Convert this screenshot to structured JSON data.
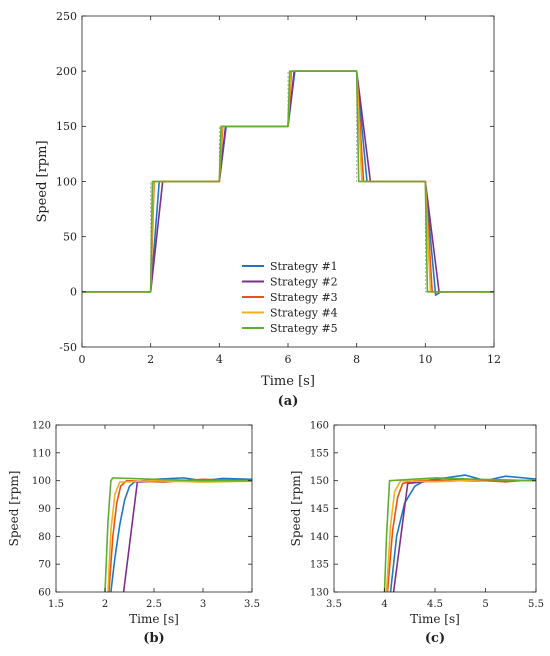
{
  "series_names": [
    "Strategy #1",
    "Strategy #2",
    "Strategy #3",
    "Strategy #4",
    "Strategy #5"
  ],
  "series_colors": [
    "#1f77c4",
    "#7e2f8e",
    "#e5531a",
    "#f2b01e",
    "#5fae2e"
  ],
  "captions": {
    "a": "(a)",
    "b": "(b)",
    "c": "(c)"
  },
  "chart_data": [
    {
      "id": "a",
      "type": "line",
      "xlabel": "Time [s]",
      "ylabel": "Speed [rpm]",
      "xlim": [
        0,
        12
      ],
      "ylim": [
        -50,
        250
      ],
      "xticks": [
        0,
        2,
        4,
        6,
        8,
        10,
        12
      ],
      "yticks": [
        -50,
        0,
        50,
        100,
        150,
        200,
        250
      ],
      "grid": false,
      "legend": "center",
      "reference": [
        [
          0,
          0
        ],
        [
          2,
          0
        ],
        [
          2,
          100
        ],
        [
          4,
          100
        ],
        [
          4,
          150
        ],
        [
          6,
          150
        ],
        [
          6,
          200
        ],
        [
          8,
          200
        ],
        [
          8,
          100
        ],
        [
          10,
          100
        ],
        [
          10,
          0
        ],
        [
          12,
          0
        ]
      ],
      "series": [
        {
          "name": "Strategy #1",
          "values": [
            [
              0,
              0
            ],
            [
              2,
              0
            ],
            [
              2.25,
              100
            ],
            [
              4,
              100
            ],
            [
              4.2,
              150
            ],
            [
              6,
              150
            ],
            [
              6.2,
              200
            ],
            [
              8,
              200
            ],
            [
              8.3,
              100
            ],
            [
              10,
              100
            ],
            [
              10.3,
              -3
            ],
            [
              10.45,
              0
            ],
            [
              12,
              0
            ]
          ]
        },
        {
          "name": "Strategy #2",
          "values": [
            [
              0,
              0
            ],
            [
              2,
              0
            ],
            [
              2.35,
              100
            ],
            [
              4,
              100
            ],
            [
              4.18,
              150
            ],
            [
              6,
              150
            ],
            [
              6.18,
              200
            ],
            [
              8,
              200
            ],
            [
              8.4,
              100
            ],
            [
              10,
              100
            ],
            [
              10.4,
              0
            ],
            [
              12,
              0
            ]
          ]
        },
        {
          "name": "Strategy #3",
          "values": [
            [
              0,
              0
            ],
            [
              2,
              0
            ],
            [
              2.1,
              100
            ],
            [
              4,
              100
            ],
            [
              4.1,
              150
            ],
            [
              6,
              150
            ],
            [
              6.1,
              200
            ],
            [
              8,
              200
            ],
            [
              8.2,
              100
            ],
            [
              10,
              100
            ],
            [
              10.2,
              0
            ],
            [
              12,
              0
            ]
          ]
        },
        {
          "name": "Strategy #4",
          "values": [
            [
              0,
              0
            ],
            [
              2,
              0
            ],
            [
              2.08,
              100
            ],
            [
              4,
              100
            ],
            [
              4.08,
              150
            ],
            [
              6,
              150
            ],
            [
              6.08,
              200
            ],
            [
              8,
              200
            ],
            [
              8.15,
              100
            ],
            [
              10,
              100
            ],
            [
              10.15,
              0
            ],
            [
              12,
              0
            ]
          ]
        },
        {
          "name": "Strategy #5",
          "values": [
            [
              0,
              0
            ],
            [
              2,
              0
            ],
            [
              2.05,
              100
            ],
            [
              4,
              100
            ],
            [
              4.05,
              150
            ],
            [
              6,
              150
            ],
            [
              6.05,
              200
            ],
            [
              8,
              200
            ],
            [
              8.06,
              100
            ],
            [
              10,
              100
            ],
            [
              10.06,
              0
            ],
            [
              12,
              0
            ]
          ]
        }
      ]
    },
    {
      "id": "b",
      "type": "line",
      "xlabel": "Time [s]",
      "ylabel": "Speed [rpm]",
      "xlim": [
        1.5,
        3.5
      ],
      "ylim": [
        60,
        120
      ],
      "xticks": [
        1.5,
        2,
        2.5,
        3,
        3.5
      ],
      "yticks": [
        60,
        70,
        80,
        90,
        100,
        110,
        120
      ],
      "grid": false,
      "series": [
        {
          "name": "Strategy #1",
          "values": [
            [
              2.06,
              60
            ],
            [
              2.1,
              72
            ],
            [
              2.15,
              84
            ],
            [
              2.2,
              93
            ],
            [
              2.25,
              98
            ],
            [
              2.3,
              99.5
            ],
            [
              2.5,
              100.5
            ],
            [
              2.8,
              101
            ],
            [
              3.0,
              100
            ],
            [
              3.2,
              100.8
            ],
            [
              3.5,
              100.5
            ]
          ]
        },
        {
          "name": "Strategy #2",
          "values": [
            [
              2.19,
              60
            ],
            [
              2.33,
              99.5
            ],
            [
              2.6,
              100
            ],
            [
              3.0,
              100
            ],
            [
              3.5,
              100
            ]
          ]
        },
        {
          "name": "Strategy #3",
          "values": [
            [
              2.04,
              60
            ],
            [
              2.08,
              80
            ],
            [
              2.12,
              92
            ],
            [
              2.16,
              98
            ],
            [
              2.22,
              100
            ],
            [
              2.6,
              99.5
            ],
            [
              3.0,
              100.5
            ],
            [
              3.5,
              100
            ]
          ]
        },
        {
          "name": "Strategy #4",
          "values": [
            [
              2.03,
              60
            ],
            [
              2.06,
              82
            ],
            [
              2.1,
              95
            ],
            [
              2.15,
              99.5
            ],
            [
              2.5,
              100
            ],
            [
              3.0,
              99.5
            ],
            [
              3.5,
              99.8
            ]
          ]
        },
        {
          "name": "Strategy #5",
          "values": [
            [
              2.0,
              60
            ],
            [
              2.03,
              85
            ],
            [
              2.06,
              100
            ],
            [
              2.08,
              101
            ],
            [
              2.5,
              100.5
            ],
            [
              3.0,
              100
            ],
            [
              3.5,
              100
            ]
          ]
        }
      ]
    },
    {
      "id": "c",
      "type": "line",
      "xlabel": "Time [s]",
      "ylabel": "Speed [rpm]",
      "xlim": [
        3.5,
        5.5
      ],
      "ylim": [
        130,
        160
      ],
      "xticks": [
        3.5,
        4,
        4.5,
        5,
        5.5
      ],
      "yticks": [
        130,
        135,
        140,
        145,
        150,
        155,
        160
      ],
      "grid": false,
      "series": [
        {
          "name": "Strategy #1",
          "values": [
            [
              4.06,
              130
            ],
            [
              4.12,
              140
            ],
            [
              4.2,
              146
            ],
            [
              4.3,
              149
            ],
            [
              4.4,
              150
            ],
            [
              4.6,
              150.5
            ],
            [
              4.8,
              151
            ],
            [
              5.0,
              150
            ],
            [
              5.2,
              150.8
            ],
            [
              5.5,
              150.3
            ]
          ]
        },
        {
          "name": "Strategy #2",
          "values": [
            [
              4.09,
              130
            ],
            [
              4.23,
              149.5
            ],
            [
              4.5,
              150
            ],
            [
              5.0,
              150
            ],
            [
              5.5,
              150
            ]
          ]
        },
        {
          "name": "Strategy #3",
          "values": [
            [
              4.03,
              130
            ],
            [
              4.08,
              141
            ],
            [
              4.13,
              147
            ],
            [
              4.18,
              149.5
            ],
            [
              4.3,
              150
            ],
            [
              4.8,
              150.2
            ],
            [
              5.2,
              149.8
            ],
            [
              5.5,
              150.2
            ]
          ]
        },
        {
          "name": "Strategy #4",
          "values": [
            [
              4.02,
              130
            ],
            [
              4.06,
              142
            ],
            [
              4.1,
              148
            ],
            [
              4.16,
              150
            ],
            [
              4.5,
              149.8
            ],
            [
              5.0,
              150.2
            ],
            [
              5.5,
              150
            ]
          ]
        },
        {
          "name": "Strategy #5",
          "values": [
            [
              4.0,
              130
            ],
            [
              4.02,
              140
            ],
            [
              4.05,
              150
            ],
            [
              4.5,
              150.5
            ],
            [
              5.0,
              150.2
            ],
            [
              5.5,
              150
            ]
          ]
        }
      ]
    }
  ]
}
